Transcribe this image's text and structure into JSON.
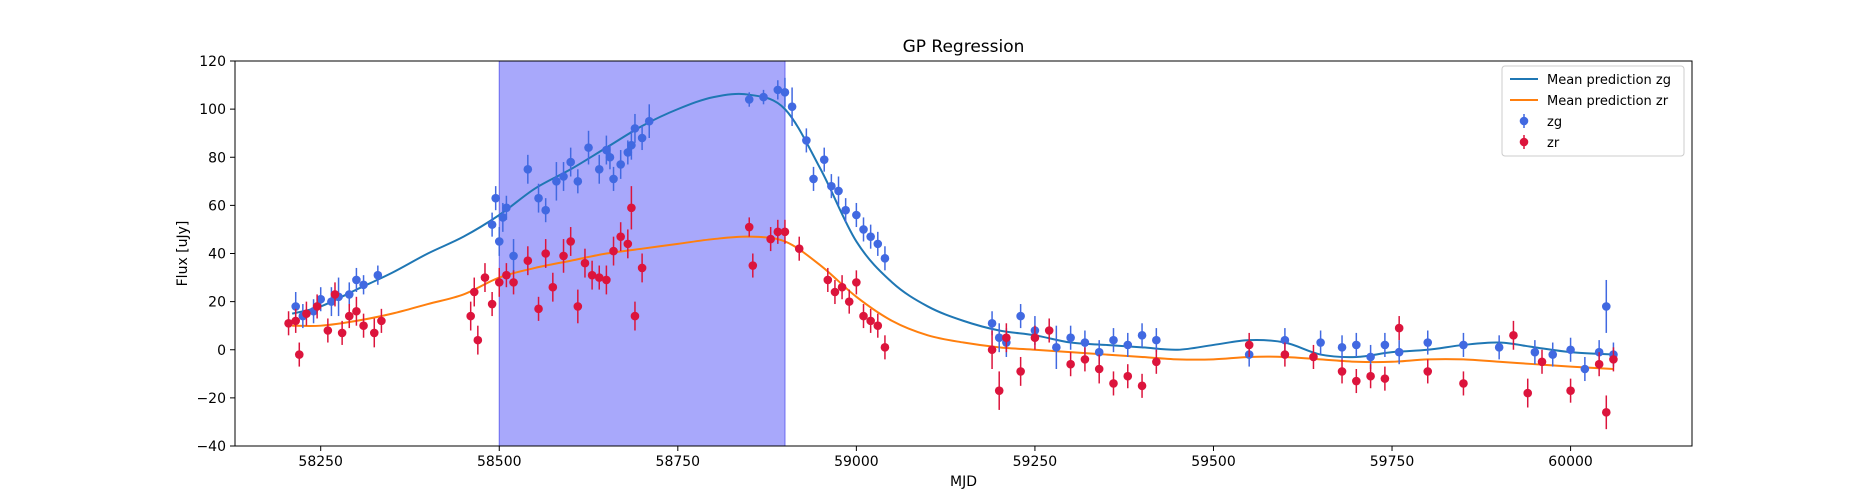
{
  "chart_data": {
    "type": "scatter",
    "title": "GP Regression",
    "xlabel": "MJD",
    "ylabel": "Flux [uJy]",
    "xlim": [
      58130,
      60170
    ],
    "ylim": [
      -40,
      120
    ],
    "xticks": [
      58250,
      58500,
      58750,
      59000,
      59250,
      59500,
      59750,
      60000
    ],
    "yticks": [
      -40,
      -20,
      0,
      20,
      40,
      60,
      80,
      100,
      120
    ],
    "grid": false,
    "legend_position": "top-right",
    "shaded_region": {
      "x_start": 58500,
      "x_end": 58900,
      "color": "#a8a8fb"
    },
    "colors": {
      "zg_line": "#1f77b4",
      "zr_line": "#ff7f0e",
      "zg_points": "#4169e1",
      "zr_points": "#dc143c"
    },
    "legend": [
      {
        "label": "Mean prediction zg",
        "kind": "line",
        "color": "#1f77b4"
      },
      {
        "label": "Mean prediction zr",
        "kind": "line",
        "color": "#ff7f0e"
      },
      {
        "label": "zg",
        "kind": "marker",
        "color": "#4169e1"
      },
      {
        "label": "zr",
        "kind": "marker",
        "color": "#dc143c"
      }
    ],
    "lines": [
      {
        "name": "Mean prediction zg",
        "color": "#1f77b4",
        "x": [
          58210,
          58250,
          58300,
          58350,
          58400,
          58450,
          58500,
          58550,
          58600,
          58650,
          58700,
          58750,
          58800,
          58850,
          58900,
          58950,
          59000,
          59050,
          59100,
          59150,
          59200,
          59250,
          59300,
          59350,
          59400,
          59450,
          59500,
          59550,
          59600,
          59650,
          59700,
          59750,
          59800,
          59850,
          59900,
          59950,
          60000,
          60060
        ],
        "y": [
          15,
          18,
          25,
          32,
          40,
          47,
          56,
          67,
          75,
          84,
          93,
          100,
          105,
          106,
          100,
          75,
          45,
          28,
          18,
          12,
          8,
          6,
          3,
          2,
          1,
          0,
          2,
          4,
          3,
          -2,
          -3,
          -1,
          0,
          2,
          3,
          1,
          -1,
          -2
        ]
      },
      {
        "name": "Mean prediction zr",
        "color": "#ff7f0e",
        "x": [
          58210,
          58250,
          58300,
          58350,
          58400,
          58450,
          58500,
          58550,
          58600,
          58650,
          58700,
          58750,
          58800,
          58850,
          58900,
          58950,
          59000,
          59050,
          59100,
          59150,
          59200,
          59250,
          59300,
          59350,
          59400,
          59450,
          59500,
          59550,
          59600,
          59650,
          59700,
          59750,
          59800,
          59850,
          59900,
          59950,
          60000,
          60060
        ],
        "y": [
          10,
          10,
          12,
          15,
          19,
          23,
          30,
          34,
          37,
          40,
          42,
          44,
          46,
          47,
          45,
          35,
          22,
          12,
          6,
          3,
          1,
          0,
          -1,
          -2,
          -3,
          -4,
          -4,
          -3,
          -3,
          -4,
          -5,
          -5,
          -4,
          -4,
          -5,
          -6,
          -7,
          -8
        ]
      }
    ],
    "series": [
      {
        "name": "zg",
        "color": "#4169e1",
        "x": [
          58215,
          58225,
          58240,
          58250,
          58265,
          58275,
          58290,
          58300,
          58310,
          58330,
          58490,
          58495,
          58500,
          58505,
          58510,
          58520,
          58540,
          58555,
          58565,
          58580,
          58590,
          58600,
          58610,
          58625,
          58640,
          58650,
          58655,
          58660,
          58670,
          58680,
          58685,
          58690,
          58700,
          58710,
          58850,
          58870,
          58890,
          58900,
          58910,
          58930,
          58940,
          58955,
          58965,
          58975,
          58985,
          59000,
          59010,
          59020,
          59030,
          59040,
          59190,
          59200,
          59210,
          59230,
          59250,
          59280,
          59300,
          59320,
          59340,
          59360,
          59380,
          59400,
          59420,
          59550,
          59600,
          59650,
          59680,
          59700,
          59720,
          59740,
          59760,
          59800,
          59850,
          59900,
          59950,
          59975,
          60000,
          60020,
          60040,
          60050,
          60060
        ],
        "y": [
          18,
          14,
          16,
          21,
          20,
          22,
          23,
          29,
          27,
          31,
          52,
          63,
          45,
          55,
          59,
          39,
          75,
          63,
          58,
          70,
          72,
          78,
          70,
          84,
          75,
          83,
          80,
          71,
          77,
          82,
          85,
          92,
          88,
          95,
          104,
          105,
          108,
          107,
          101,
          87,
          71,
          79,
          68,
          66,
          58,
          56,
          50,
          47,
          44,
          38,
          11,
          5,
          3,
          14,
          8,
          1,
          5,
          3,
          -1,
          4,
          2,
          6,
          4,
          -2,
          4,
          3,
          1,
          2,
          -3,
          2,
          -1,
          3,
          2,
          1,
          -1,
          -2,
          0,
          -8,
          -1,
          18,
          -2
        ],
        "err": [
          6,
          5,
          5,
          5,
          6,
          8,
          5,
          5,
          4,
          4,
          5,
          5,
          6,
          6,
          5,
          7,
          6,
          6,
          5,
          8,
          6,
          6,
          5,
          7,
          6,
          6,
          5,
          5,
          6,
          5,
          6,
          6,
          5,
          7,
          3,
          3,
          4,
          6,
          8,
          5,
          5,
          5,
          5,
          6,
          5,
          5,
          5,
          5,
          5,
          5,
          5,
          6,
          6,
          5,
          6,
          9,
          5,
          5,
          5,
          5,
          5,
          5,
          5,
          5,
          5,
          5,
          5,
          5,
          5,
          5,
          5,
          5,
          5,
          5,
          5,
          5,
          5,
          5,
          5,
          11,
          5
        ]
      },
      {
        "name": "zr",
        "color": "#dc143c",
        "x": [
          58205,
          58215,
          58220,
          58230,
          58245,
          58260,
          58270,
          58280,
          58290,
          58300,
          58310,
          58325,
          58335,
          58460,
          58465,
          58470,
          58480,
          58490,
          58500,
          58510,
          58520,
          58540,
          58555,
          58565,
          58575,
          58590,
          58600,
          58610,
          58620,
          58630,
          58640,
          58650,
          58660,
          58670,
          58680,
          58685,
          58690,
          58700,
          58850,
          58855,
          58880,
          58890,
          58900,
          58920,
          58960,
          58970,
          58980,
          58990,
          59000,
          59010,
          59020,
          59030,
          59040,
          59190,
          59200,
          59210,
          59230,
          59250,
          59270,
          59300,
          59320,
          59340,
          59360,
          59380,
          59400,
          59420,
          59550,
          59600,
          59640,
          59680,
          59700,
          59720,
          59740,
          59760,
          59800,
          59850,
          59920,
          59940,
          59960,
          60000,
          60040,
          60050,
          60060
        ],
        "y": [
          11,
          12,
          -2,
          15,
          18,
          8,
          23,
          7,
          14,
          16,
          10,
          7,
          12,
          14,
          24,
          4,
          30,
          19,
          28,
          31,
          28,
          37,
          17,
          40,
          26,
          39,
          45,
          18,
          36,
          31,
          30,
          29,
          41,
          47,
          44,
          59,
          14,
          34,
          51,
          35,
          46,
          49,
          49,
          42,
          29,
          24,
          26,
          20,
          28,
          14,
          12,
          10,
          1,
          0,
          -17,
          5,
          -9,
          5,
          8,
          -6,
          -4,
          -8,
          -14,
          -11,
          -15,
          -5,
          2,
          -2,
          -3,
          -9,
          -13,
          -11,
          -12,
          9,
          -9,
          -14,
          6,
          -18,
          -5,
          -17,
          -6,
          -26,
          -4
        ],
        "err": [
          5,
          5,
          5,
          5,
          5,
          5,
          5,
          5,
          5,
          6,
          5,
          6,
          5,
          6,
          6,
          6,
          6,
          5,
          6,
          5,
          5,
          6,
          5,
          6,
          6,
          7,
          6,
          7,
          6,
          6,
          5,
          6,
          6,
          6,
          6,
          9,
          6,
          6,
          4,
          5,
          5,
          5,
          5,
          5,
          5,
          5,
          5,
          5,
          5,
          5,
          5,
          5,
          5,
          8,
          8,
          6,
          6,
          5,
          5,
          5,
          5,
          6,
          5,
          5,
          5,
          5,
          5,
          5,
          5,
          5,
          5,
          5,
          5,
          5,
          5,
          5,
          6,
          6,
          5,
          5,
          5,
          7,
          5
        ]
      }
    ]
  }
}
